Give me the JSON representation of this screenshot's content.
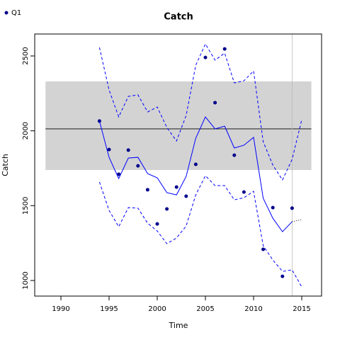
{
  "chart_data": {
    "type": "line",
    "title": "Catch",
    "xlabel": "Time",
    "ylabel": "Catch",
    "x": [
      1994,
      1995,
      1996,
      1997,
      1998,
      1999,
      2000,
      2001,
      2002,
      2003,
      2004,
      2005,
      2006,
      2007,
      2008,
      2009,
      2010,
      2011,
      2012,
      2013,
      2014,
      2015
    ],
    "series": [
      {
        "name": "Q1",
        "color": "#00008b",
        "style": "points",
        "values": [
          2065,
          1875,
          1710,
          1871,
          1766,
          1606,
          1378,
          1478,
          1624,
          1563,
          1776,
          2490,
          2188,
          2547,
          1837,
          1591,
          null,
          1208,
          1487,
          1028,
          1483,
          null
        ]
      },
      {
        "color": "#0000ff",
        "style": "solid",
        "values": [
          2065,
          1823,
          1681,
          1818,
          1823,
          1714,
          1686,
          1587,
          1572,
          1695,
          1951,
          2093,
          2013,
          2031,
          1885,
          1904,
          1956,
          1549,
          1416,
          1326,
          1393,
          null
        ]
      },
      {
        "color": "#000000",
        "style": "dotted",
        "values": [
          null,
          null,
          null,
          null,
          null,
          null,
          null,
          null,
          null,
          null,
          null,
          null,
          null,
          null,
          null,
          null,
          null,
          null,
          null,
          null,
          1393,
          1407
        ]
      },
      {
        "color": "#0000ff",
        "style": "dashed",
        "values": [
          2557,
          2273,
          2093,
          2230,
          2240,
          2126,
          2159,
          2022,
          1932,
          2102,
          2438,
          2580,
          2472,
          2519,
          2320,
          2334,
          2400,
          1927,
          1771,
          1672,
          1809,
          2074
        ]
      },
      {
        "color": "#0000ff",
        "style": "dashed",
        "values": [
          1658,
          1468,
          1359,
          1487,
          1483,
          1383,
          1331,
          1246,
          1284,
          1364,
          1572,
          1700,
          1634,
          1634,
          1539,
          1553,
          1596,
          1232,
          1137,
          1061,
          1071,
          957
        ]
      }
    ],
    "shaded_region": {
      "x": [
        1988.4,
        2016
      ],
      "y": [
        1738,
        2330
      ],
      "color": "#d3d3d3"
    },
    "hline": 2013,
    "vline": 2014,
    "xlim": [
      1987.28,
      2017.06
    ],
    "ylim": [
      895.9,
      2646.7
    ],
    "xticks": [
      1990,
      1995,
      2000,
      2005,
      2010,
      2015
    ],
    "yticks": [
      1000,
      1500,
      2000,
      2500
    ],
    "legend": "top-left"
  }
}
